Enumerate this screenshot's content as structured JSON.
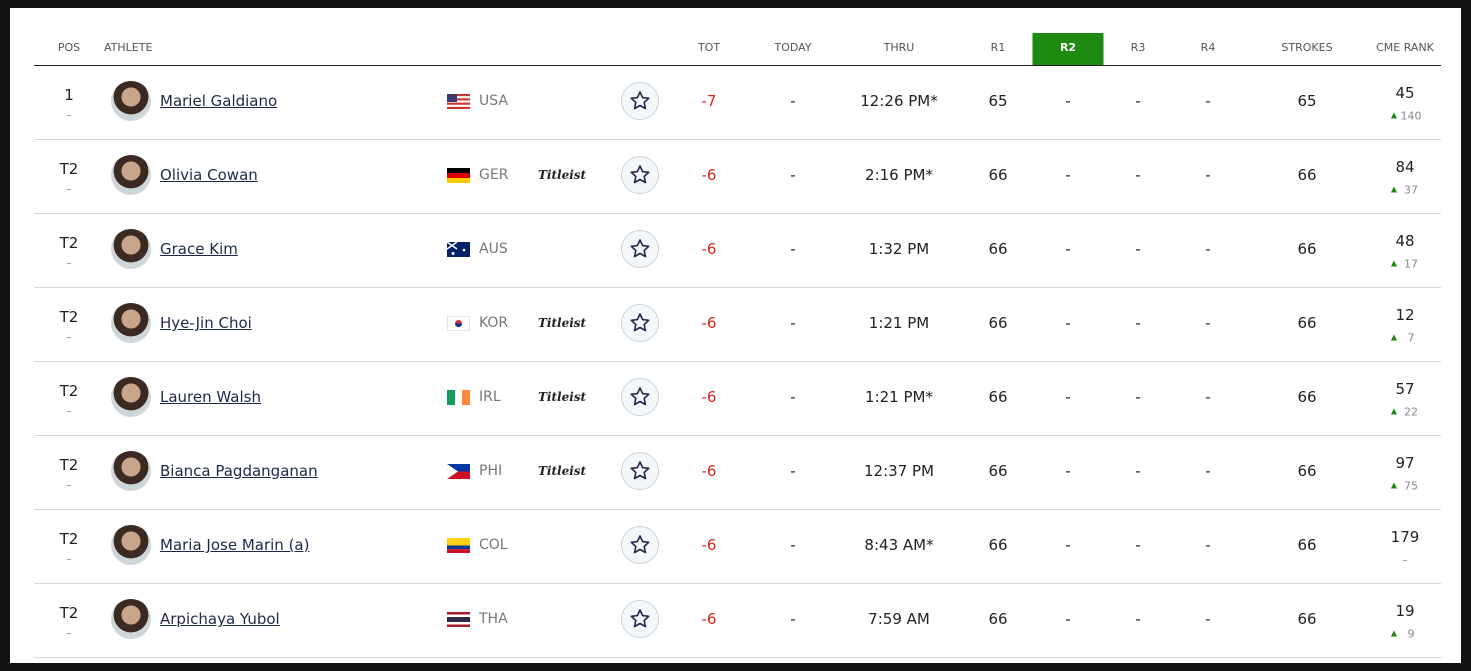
{
  "header": {
    "columns": [
      "POS",
      "ATHLETE",
      "TOT",
      "TODAY",
      "THRU",
      "R1",
      "R2",
      "R3",
      "R4",
      "STROKES",
      "CME RANK"
    ],
    "active_column": 6
  },
  "rows": [
    {
      "pos": "1",
      "pos_move": "–",
      "name": "Mariel Galdiano",
      "country": "USA",
      "tot": -7,
      "today": "-",
      "thru": "12:26 PM*",
      "r1": 65,
      "r2": "-",
      "r3": "-",
      "r4": "-",
      "strokes": 65,
      "cme_rank": 45,
      "cme_move": 140,
      "cme_trend": "up"
    },
    {
      "pos": "T2",
      "pos_move": "–",
      "name": "Olivia Cowan",
      "country": "GER",
      "sponsor": "Titleist",
      "tot": -6,
      "today": "-",
      "thru": "2:16 PM*",
      "r1": 66,
      "r2": "-",
      "r3": "-",
      "r4": "-",
      "strokes": 66,
      "cme_rank": 84,
      "cme_move": 37,
      "cme_trend": "up"
    },
    {
      "pos": "T2",
      "pos_move": "–",
      "name": "Grace Kim",
      "country": "AUS",
      "tot": -6,
      "today": "-",
      "thru": "1:32 PM",
      "r1": 66,
      "r2": "-",
      "r3": "-",
      "r4": "-",
      "strokes": 66,
      "cme_rank": 48,
      "cme_move": 17,
      "cme_trend": "up"
    },
    {
      "pos": "T2",
      "pos_move": "–",
      "name": "Hye-Jin Choi",
      "country": "KOR",
      "sponsor": "Titleist",
      "tot": -6,
      "today": "-",
      "thru": "1:21 PM",
      "r1": 66,
      "r2": "-",
      "r3": "-",
      "r4": "-",
      "strokes": 66,
      "cme_rank": 12,
      "cme_move": 7,
      "cme_trend": "up"
    },
    {
      "pos": "T2",
      "pos_move": "–",
      "name": "Lauren Walsh",
      "country": "IRL",
      "sponsor": "Titleist",
      "tot": -6,
      "today": "-",
      "thru": "1:21 PM*",
      "r1": 66,
      "r2": "-",
      "r3": "-",
      "r4": "-",
      "strokes": 66,
      "cme_rank": 57,
      "cme_move": 22,
      "cme_trend": "up"
    },
    {
      "pos": "T2",
      "pos_move": "–",
      "name": "Bianca Pagdanganan",
      "country": "PHI",
      "sponsor": "Titleist",
      "tot": -6,
      "today": "-",
      "thru": "12:37 PM",
      "r1": 66,
      "r2": "-",
      "r3": "-",
      "r4": "-",
      "strokes": 66,
      "cme_rank": 97,
      "cme_move": 75,
      "cme_trend": "up"
    },
    {
      "pos": "T2",
      "pos_move": "–",
      "name": "Maria Jose Marin (a)",
      "country": "COL",
      "tot": -6,
      "today": "-",
      "thru": "8:43 AM*",
      "r1": 66,
      "r2": "-",
      "r3": "-",
      "r4": "-",
      "strokes": 66,
      "cme_rank": 179,
      "cme_move": "–"
    },
    {
      "pos": "T2",
      "pos_move": "–",
      "name": "Arpichaya Yubol",
      "country": "THA",
      "tot": -6,
      "today": "-",
      "thru": "7:59 AM",
      "r1": 66,
      "r2": "-",
      "r3": "-",
      "r4": "-",
      "strokes": 66,
      "cme_rank": 19,
      "cme_move": 9,
      "cme_trend": "up"
    }
  ]
}
